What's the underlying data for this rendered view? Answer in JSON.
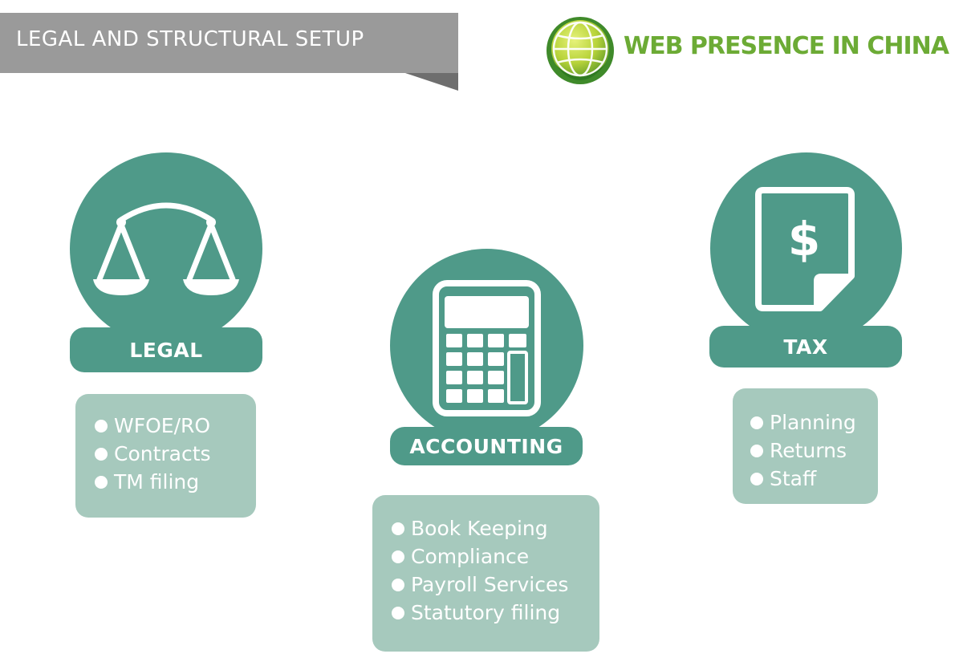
{
  "header": {
    "title": "LEGAL AND STRUCTURAL SETUP",
    "brand": "WEB PRESENCE IN CHINA"
  },
  "colors": {
    "ribbon": "#9a9a9a",
    "teal": "#4f9a89",
    "teal_light": "#a6c9bd",
    "brand_green": "#6cab35"
  },
  "sections": [
    {
      "label": "LEGAL",
      "icon": "scales-icon",
      "items": [
        "WFOE/RO",
        "Contracts",
        "TM filing"
      ]
    },
    {
      "label": "ACCOUNTING",
      "icon": "calculator-icon",
      "items": [
        "Book Keeping",
        "Compliance",
        "Payroll Services",
        "Statutory filing"
      ]
    },
    {
      "label": "TAX",
      "icon": "dollar-document-icon",
      "items": [
        "Planning",
        "Returns",
        "Staff"
      ]
    }
  ]
}
